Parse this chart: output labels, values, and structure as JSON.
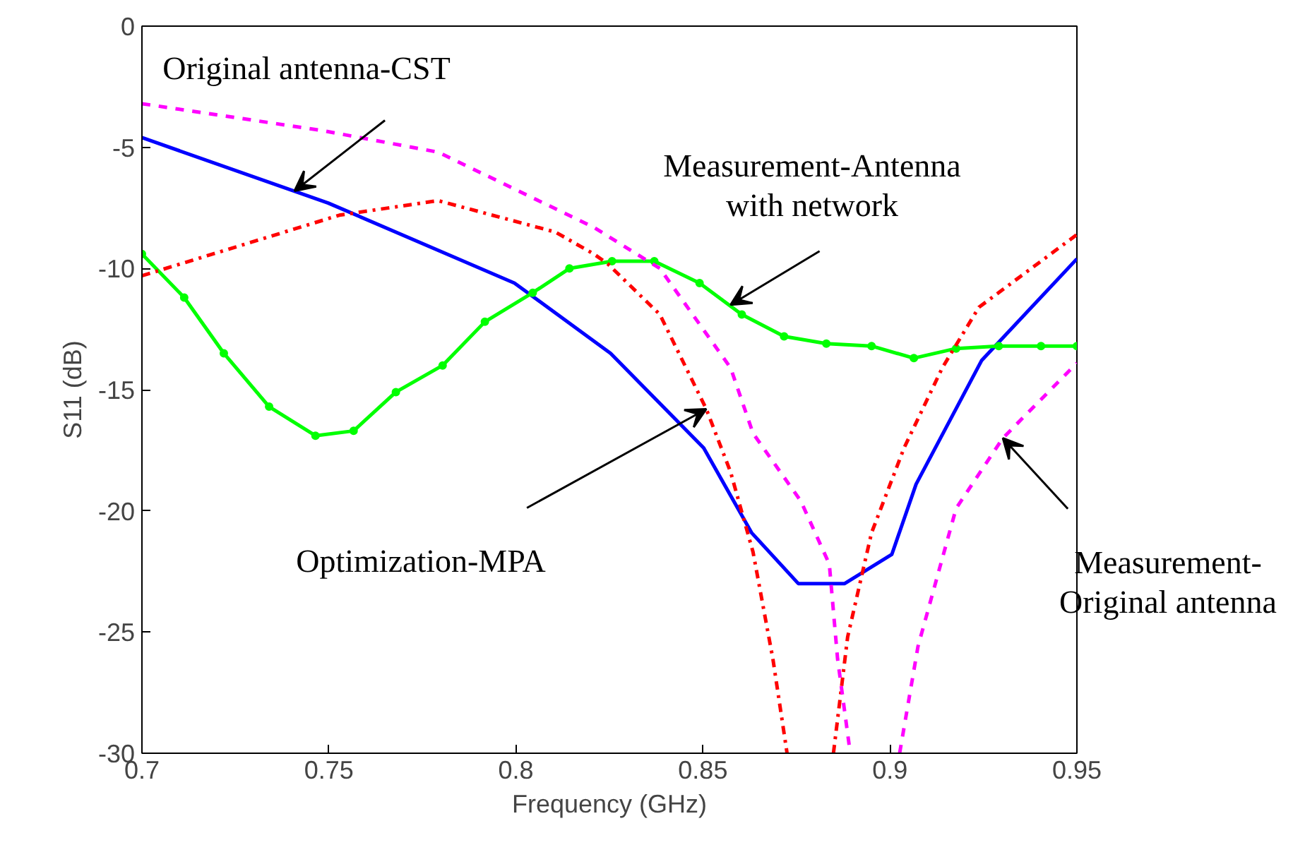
{
  "chart_data": {
    "type": "line",
    "xlabel": "Frequency (GHz)",
    "ylabel": "S11 (dB)",
    "xlim": [
      0.7,
      0.95
    ],
    "xticks": [
      0.7,
      0.75,
      0.8,
      0.85,
      0.9,
      0.95
    ],
    "ylim": [
      -30,
      0
    ],
    "yticks": [
      -30,
      -25,
      -20,
      -15,
      -10,
      -5,
      0
    ],
    "grid": false,
    "series": [
      {
        "color": "#0000ff",
        "line_style": "solid",
        "marker": "none",
        "x": [
          0.7,
          0.7498,
          0.7996,
          0.8253,
          0.8502,
          0.863,
          0.8755,
          0.8879,
          0.9005,
          0.907,
          0.9245,
          0.95
        ],
        "values": [
          -4.6,
          -7.3,
          -10.6,
          -13.5,
          -17.4,
          -20.9,
          -23.0,
          -23.0,
          -21.8,
          -18.9,
          -13.8,
          -9.6
        ]
      },
      {
        "color": "#00ff00",
        "line_style": "solid",
        "marker": "circle",
        "x": [
          0.7,
          0.7113,
          0.7219,
          0.734,
          0.7464,
          0.7566,
          0.7679,
          0.7804,
          0.7917,
          0.8045,
          0.8143,
          0.8257,
          0.837,
          0.8491,
          0.8604,
          0.8717,
          0.883,
          0.8951,
          0.9064,
          0.9177,
          0.9291,
          0.9404,
          0.95
        ],
        "values": [
          -9.4,
          -11.2,
          -13.5,
          -15.7,
          -16.9,
          -16.7,
          -15.1,
          -14.0,
          -12.2,
          -11.0,
          -10.0,
          -9.7,
          -9.7,
          -10.6,
          -11.9,
          -12.8,
          -13.1,
          -13.2,
          -13.7,
          -13.3,
          -13.2,
          -13.2,
          -13.2
        ]
      },
      {
        "color": "#ff0000",
        "line_style": "dashdot",
        "marker": "none",
        "x": [
          0.7,
          0.7528,
          0.7792,
          0.8106,
          0.8208,
          0.8245,
          0.8385,
          0.8509,
          0.8574,
          0.8634,
          0.8687,
          0.8725,
          null,
          0.8849,
          0.8887,
          0.8951,
          0.9038,
          0.914,
          0.9238,
          0.95
        ],
        "values": [
          -10.3,
          -7.8,
          -7.2,
          -8.5,
          -9.4,
          -9.8,
          -11.9,
          -15.8,
          -18.4,
          -21.7,
          -26.1,
          -30,
          null,
          -30,
          -25.2,
          -20.9,
          -17.4,
          -14.1,
          -11.6,
          -8.6
        ]
      },
      {
        "color": "#ff00ff",
        "line_style": "dashed",
        "marker": "none",
        "x": [
          0.7,
          0.7479,
          0.7792,
          0.8208,
          0.8385,
          0.8574,
          0.8634,
          0.8762,
          0.8838,
          0.886,
          0.8894,
          null,
          0.9026,
          0.9075,
          0.9177,
          0.9302,
          0.95
        ],
        "values": [
          -3.2,
          -4.3,
          -5.2,
          -8.3,
          -10.0,
          -14.1,
          -16.8,
          -19.6,
          -22.2,
          -26.1,
          -30,
          null,
          -30,
          -25.6,
          -19.9,
          -17.0,
          -13.9
        ]
      }
    ],
    "annotations": [
      {
        "text": "Original antenna-CST",
        "x": 0.7408,
        "y": -6.8
      },
      {
        "text": "Measurement-Antenna\nwith network",
        "x": 0.8574,
        "y": -11.5
      },
      {
        "text": "Optimization-MPA",
        "x": 0.8509,
        "y": -15.8
      },
      {
        "text": "Measurement-\nOriginal antenna",
        "x": 0.9302,
        "y": -17.0
      }
    ]
  }
}
